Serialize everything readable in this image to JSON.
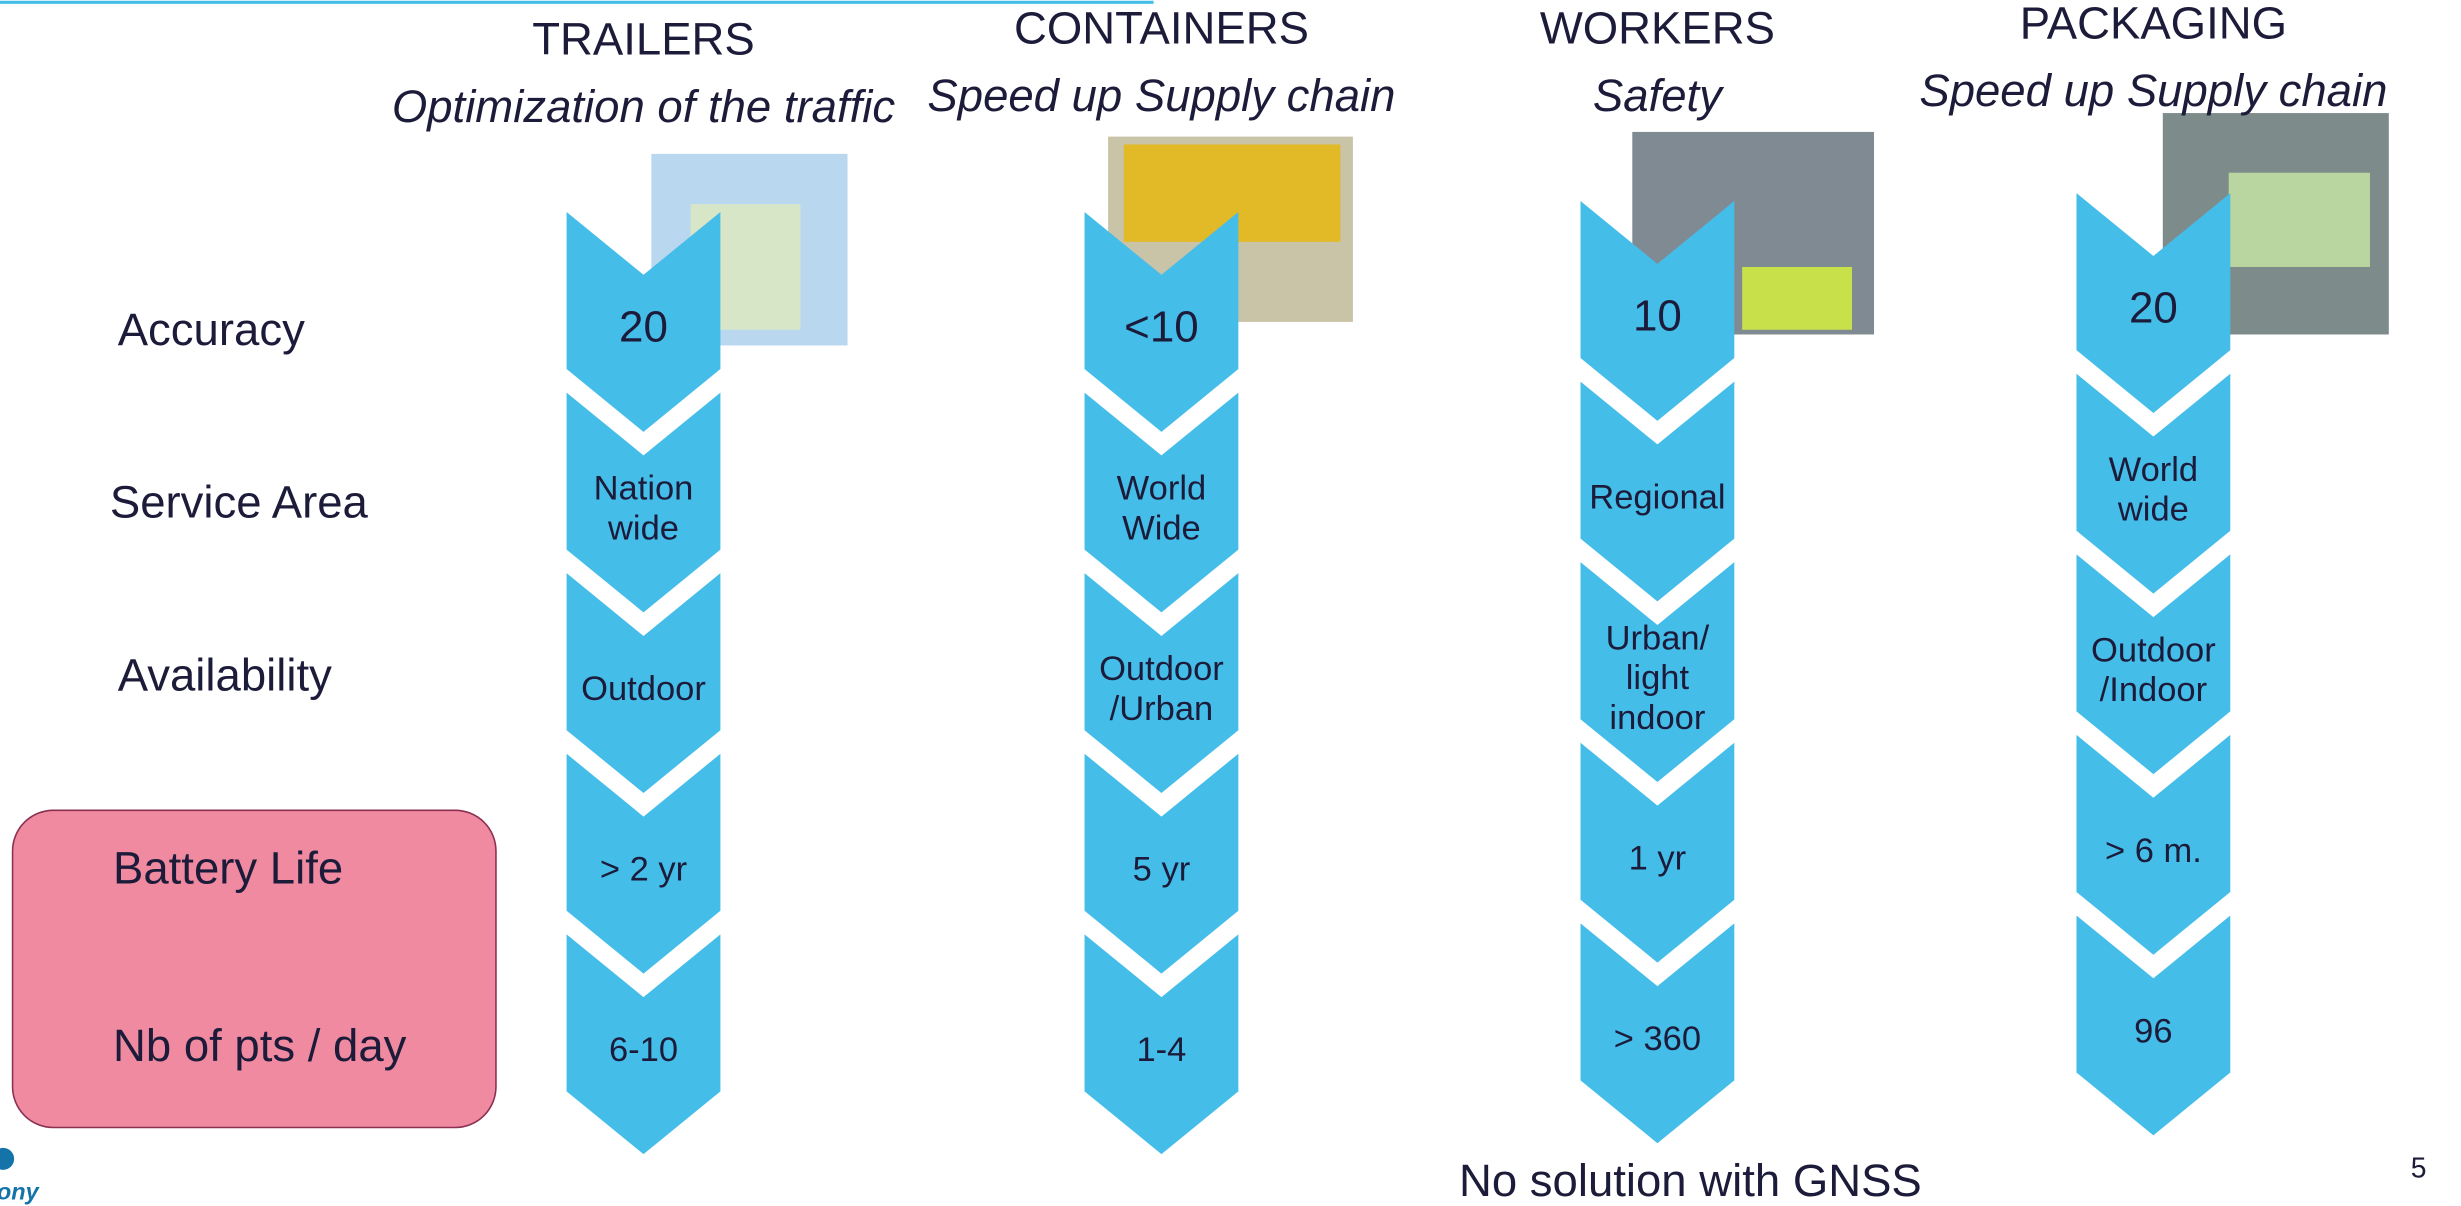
{
  "columns": [
    {
      "title": "TRAILERS",
      "subtitle": "Optimization of the traffic",
      "values": [
        [
          "20"
        ],
        [
          "Nation",
          "wide"
        ],
        [
          "Outdoor"
        ],
        [
          "> 2 yr"
        ],
        [
          "6-10"
        ]
      ]
    },
    {
      "title": "CONTAINERS",
      "subtitle": "Speed up Supply chain",
      "values": [
        [
          "<10"
        ],
        [
          "World",
          "Wide"
        ],
        [
          "Outdoor",
          "/Urban"
        ],
        [
          "5 yr"
        ],
        [
          "1-4"
        ]
      ]
    },
    {
      "title": "WORKERS",
      "subtitle": "Safety",
      "values": [
        [
          "10"
        ],
        [
          "Regional"
        ],
        [
          "Urban/",
          "light",
          "indoor"
        ],
        [
          "1 yr"
        ],
        [
          "> 360"
        ]
      ]
    },
    {
      "title": "PACKAGING",
      "subtitle": "Speed up Supply chain",
      "values": [
        [
          "20"
        ],
        [
          "World",
          "wide"
        ],
        [
          "Outdoor",
          "/Indoor"
        ],
        [
          "> 6 m."
        ],
        [
          "96"
        ]
      ]
    }
  ],
  "rows": [
    "Accuracy",
    "Service Area",
    "Availability",
    "Battery Life",
    "Nb of pts / day"
  ],
  "footer": "No solution with GNSS",
  "page_number": "5",
  "logo": "ony"
}
